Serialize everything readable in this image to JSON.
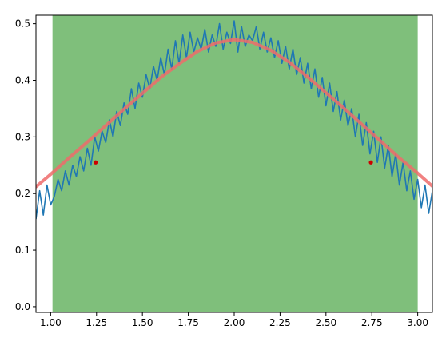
{
  "chart_data": {
    "type": "line",
    "title": "",
    "xlabel": "",
    "ylabel": "",
    "xlim": [
      0.92,
      3.08
    ],
    "ylim": [
      -0.01,
      0.515
    ],
    "grid": false,
    "x_ticks": [
      {
        "value": 1.0,
        "label": "1.00"
      },
      {
        "value": 1.25,
        "label": "1.25"
      },
      {
        "value": 1.5,
        "label": "1.50"
      },
      {
        "value": 1.75,
        "label": "1.75"
      },
      {
        "value": 2.0,
        "label": "2.00"
      },
      {
        "value": 2.25,
        "label": "2.25"
      },
      {
        "value": 2.5,
        "label": "2.50"
      },
      {
        "value": 2.75,
        "label": "2.75"
      },
      {
        "value": 3.0,
        "label": "3.00"
      }
    ],
    "y_ticks": [
      {
        "value": 0.0,
        "label": "0.0"
      },
      {
        "value": 0.1,
        "label": "0.1"
      },
      {
        "value": 0.2,
        "label": "0.2"
      },
      {
        "value": 0.3,
        "label": "0.3"
      },
      {
        "value": 0.4,
        "label": "0.4"
      },
      {
        "value": 0.5,
        "label": "0.5"
      }
    ],
    "span": {
      "x0": 1.01,
      "x1": 3.0,
      "color": "#7fbf7b"
    },
    "series": [
      {
        "kind": "fitted-curve",
        "color": "#ef6b6b",
        "x": [
          0.92,
          1.0,
          1.1,
          1.2,
          1.3,
          1.4,
          1.5,
          1.6,
          1.7,
          1.8,
          1.9,
          2.0,
          2.1,
          2.2,
          2.3,
          2.4,
          2.5,
          2.6,
          2.7,
          2.8,
          2.9,
          3.0,
          3.08
        ],
        "y": [
          0.212,
          0.234,
          0.263,
          0.291,
          0.32,
          0.349,
          0.377,
          0.405,
          0.429,
          0.451,
          0.466,
          0.472,
          0.467,
          0.453,
          0.432,
          0.406,
          0.378,
          0.35,
          0.321,
          0.292,
          0.263,
          0.236,
          0.213
        ]
      },
      {
        "kind": "noisy-signal",
        "color": "#1f77b4",
        "x": [
          0.92,
          0.94,
          0.96,
          0.98,
          1.0,
          1.02,
          1.04,
          1.06,
          1.08,
          1.1,
          1.12,
          1.14,
          1.16,
          1.18,
          1.2,
          1.22,
          1.24,
          1.26,
          1.28,
          1.3,
          1.32,
          1.34,
          1.36,
          1.38,
          1.4,
          1.42,
          1.44,
          1.46,
          1.48,
          1.5,
          1.52,
          1.54,
          1.56,
          1.58,
          1.6,
          1.62,
          1.64,
          1.66,
          1.68,
          1.7,
          1.72,
          1.74,
          1.76,
          1.78,
          1.8,
          1.82,
          1.84,
          1.86,
          1.88,
          1.9,
          1.92,
          1.94,
          1.96,
          1.98,
          2.0,
          2.02,
          2.04,
          2.06,
          2.08,
          2.1,
          2.12,
          2.14,
          2.16,
          2.18,
          2.2,
          2.22,
          2.24,
          2.26,
          2.28,
          2.3,
          2.32,
          2.34,
          2.36,
          2.38,
          2.4,
          2.42,
          2.44,
          2.46,
          2.48,
          2.5,
          2.52,
          2.54,
          2.56,
          2.58,
          2.6,
          2.62,
          2.64,
          2.66,
          2.68,
          2.7,
          2.72,
          2.74,
          2.76,
          2.78,
          2.8,
          2.82,
          2.84,
          2.86,
          2.88,
          2.9,
          2.92,
          2.94,
          2.96,
          2.98,
          3.0,
          3.02,
          3.04,
          3.06,
          3.08
        ],
        "y": [
          0.155,
          0.205,
          0.162,
          0.215,
          0.18,
          0.195,
          0.225,
          0.205,
          0.24,
          0.215,
          0.25,
          0.23,
          0.265,
          0.24,
          0.28,
          0.25,
          0.3,
          0.275,
          0.31,
          0.29,
          0.33,
          0.3,
          0.345,
          0.32,
          0.36,
          0.34,
          0.385,
          0.35,
          0.395,
          0.37,
          0.41,
          0.385,
          0.425,
          0.4,
          0.44,
          0.41,
          0.455,
          0.42,
          0.47,
          0.43,
          0.48,
          0.44,
          0.485,
          0.45,
          0.475,
          0.455,
          0.49,
          0.45,
          0.48,
          0.46,
          0.5,
          0.455,
          0.485,
          0.465,
          0.505,
          0.45,
          0.495,
          0.46,
          0.48,
          0.47,
          0.495,
          0.455,
          0.485,
          0.45,
          0.475,
          0.44,
          0.47,
          0.43,
          0.46,
          0.42,
          0.455,
          0.41,
          0.44,
          0.395,
          0.43,
          0.385,
          0.42,
          0.37,
          0.405,
          0.355,
          0.395,
          0.345,
          0.38,
          0.33,
          0.365,
          0.32,
          0.35,
          0.3,
          0.34,
          0.285,
          0.325,
          0.27,
          0.31,
          0.255,
          0.3,
          0.245,
          0.285,
          0.23,
          0.27,
          0.215,
          0.255,
          0.205,
          0.24,
          0.19,
          0.225,
          0.175,
          0.215,
          0.165,
          0.205
        ]
      },
      {
        "kind": "marker-points",
        "color": "#cc0000",
        "x": [
          1.245,
          2.745
        ],
        "y": [
          0.255,
          0.255
        ]
      }
    ]
  }
}
